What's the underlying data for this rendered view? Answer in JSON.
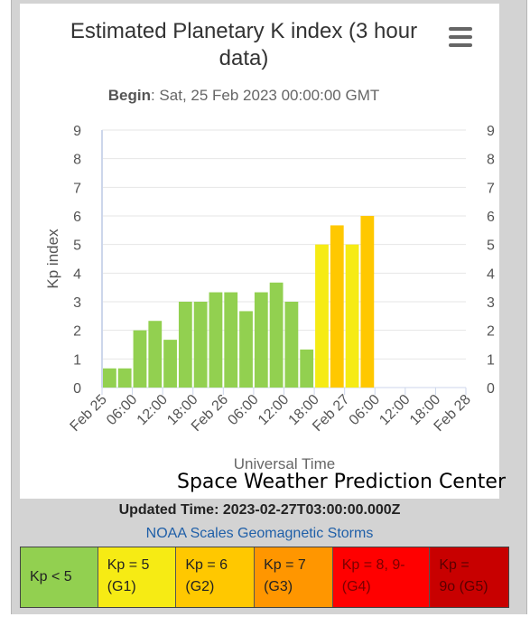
{
  "chart_data": {
    "type": "bar",
    "title": "Estimated Planetary K index (3 hour data)",
    "subtitle_label": "Begin",
    "subtitle_value": ": Sat, 25 Feb 2023 00:00:00 GMT",
    "xlabel": "Universal Time",
    "ylabel": "Kp index",
    "ylim": [
      0,
      9
    ],
    "y_ticks": [
      "0",
      "1",
      "2",
      "3",
      "4",
      "5",
      "6",
      "7",
      "8",
      "9"
    ],
    "x_ticks": [
      "Feb 25",
      "06:00",
      "12:00",
      "18:00",
      "Feb 26",
      "06:00",
      "12:00",
      "18:00",
      "Feb 27",
      "06:00",
      "12:00",
      "18:00",
      "Feb 28"
    ],
    "grid": true,
    "bars": [
      {
        "time": "2023-02-25 00:00",
        "value": 0.67,
        "color": "#92d050"
      },
      {
        "time": "2023-02-25 03:00",
        "value": 0.67,
        "color": "#92d050"
      },
      {
        "time": "2023-02-25 06:00",
        "value": 2.0,
        "color": "#92d050"
      },
      {
        "time": "2023-02-25 09:00",
        "value": 2.33,
        "color": "#92d050"
      },
      {
        "time": "2023-02-25 12:00",
        "value": 1.67,
        "color": "#92d050"
      },
      {
        "time": "2023-02-25 15:00",
        "value": 3.0,
        "color": "#92d050"
      },
      {
        "time": "2023-02-25 18:00",
        "value": 3.0,
        "color": "#92d050"
      },
      {
        "time": "2023-02-25 21:00",
        "value": 3.33,
        "color": "#92d050"
      },
      {
        "time": "2023-02-26 00:00",
        "value": 3.33,
        "color": "#92d050"
      },
      {
        "time": "2023-02-26 03:00",
        "value": 2.67,
        "color": "#92d050"
      },
      {
        "time": "2023-02-26 06:00",
        "value": 3.33,
        "color": "#92d050"
      },
      {
        "time": "2023-02-26 09:00",
        "value": 3.67,
        "color": "#92d050"
      },
      {
        "time": "2023-02-26 12:00",
        "value": 3.0,
        "color": "#92d050"
      },
      {
        "time": "2023-02-26 15:00",
        "value": 1.33,
        "color": "#92d050"
      },
      {
        "time": "2023-02-26 18:00",
        "value": 5.0,
        "color": "#f6eb14"
      },
      {
        "time": "2023-02-26 21:00",
        "value": 5.67,
        "color": "#ffc800"
      },
      {
        "time": "2023-02-27 00:00",
        "value": 5.0,
        "color": "#f6eb14"
      },
      {
        "time": "2023-02-27 03:00",
        "value": 6.0,
        "color": "#ffc800"
      }
    ],
    "credit": "Space Weather Prediction Center"
  },
  "updated_text": "Updated Time: 2023-02-27T03:00:00.000Z",
  "scales_link": "NOAA Scales Geomagnetic Storms",
  "scale_legend": [
    {
      "lines": [
        "Kp < 5"
      ],
      "color": "#92d050",
      "text_color": "#222222"
    },
    {
      "lines": [
        "Kp = 5",
        "(G1)"
      ],
      "color": "#f6eb14",
      "text_color": "#222222"
    },
    {
      "lines": [
        "Kp = 6",
        "(G2)"
      ],
      "color": "#ffc800",
      "text_color": "#222222"
    },
    {
      "lines": [
        "Kp = 7",
        "(G3)"
      ],
      "color": "#ff9600",
      "text_color": "#222222"
    },
    {
      "lines": [
        "Kp = 8, 9-",
        "(G4)"
      ],
      "color": "#ff0000",
      "text_color": "#7a0000"
    },
    {
      "lines": [
        "Kp =",
        "9o (G5)"
      ],
      "color": "#c80000",
      "text_color": "#5a0000"
    }
  ],
  "menu_icon": "hamburger-menu-icon"
}
